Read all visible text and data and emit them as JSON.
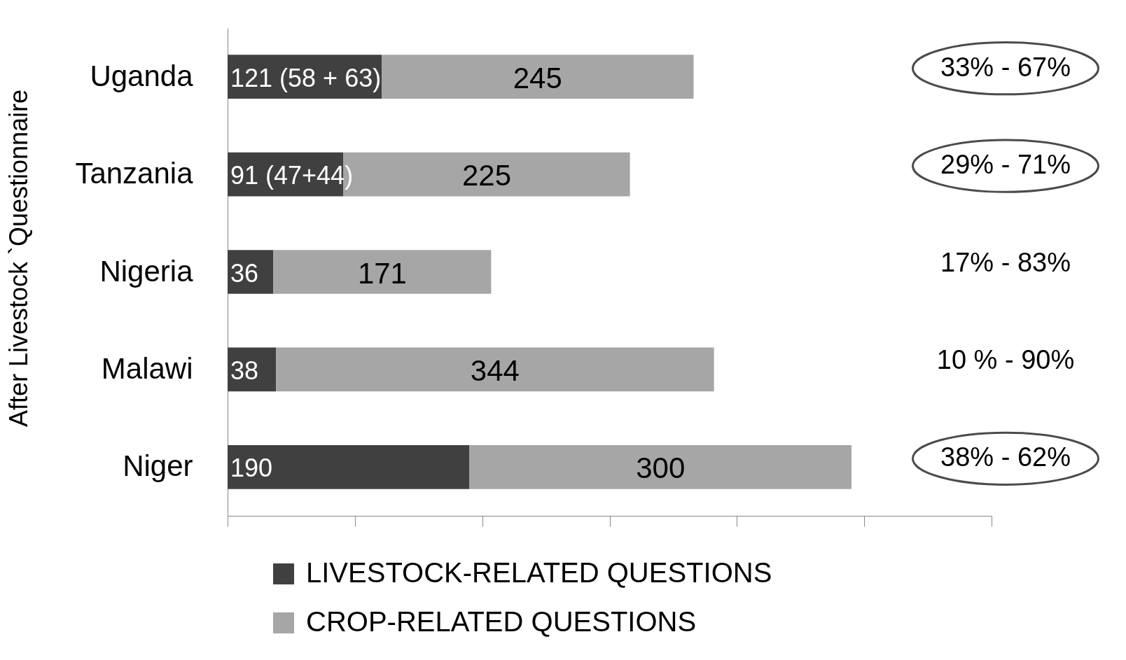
{
  "chart_data": {
    "type": "bar",
    "orientation": "horizontal",
    "stacked": true,
    "ylabel": "After Livestock `Questionnaire",
    "categories": [
      "Uganda",
      "Tanzania",
      "Nigeria",
      "Malawi",
      "Niger"
    ],
    "series": [
      {
        "name": "LIVESTOCK-RELATED QUESTIONS",
        "color": "#404040",
        "values": [
          121,
          91,
          36,
          38,
          190
        ],
        "value_labels": [
          "121 (58 + 63)",
          "91 (47+44)",
          "36",
          "38",
          "190"
        ]
      },
      {
        "name": "CROP-RELATED QUESTIONS",
        "color": "#a6a6a6",
        "values": [
          245,
          225,
          171,
          344,
          300
        ],
        "value_labels": [
          "245",
          "225",
          "171",
          "344",
          "300"
        ]
      }
    ],
    "xlim": [
      0,
      600
    ],
    "xticks": [
      {
        "value": 0,
        "label": null
      },
      {
        "value": 100,
        "label": null
      },
      {
        "value": 200,
        "label": null
      },
      {
        "value": 300,
        "label": null
      },
      {
        "value": 400,
        "label": null
      },
      {
        "value": 500,
        "label": null
      },
      {
        "value": 600,
        "label": null
      }
    ],
    "tick_labels": "y",
    "grid": false,
    "legend": "bottom",
    "annotations": [
      "33% - 67%",
      "29% - 71%",
      "17% - 83%",
      "10 % - 90%",
      "38% - 62%"
    ]
  }
}
